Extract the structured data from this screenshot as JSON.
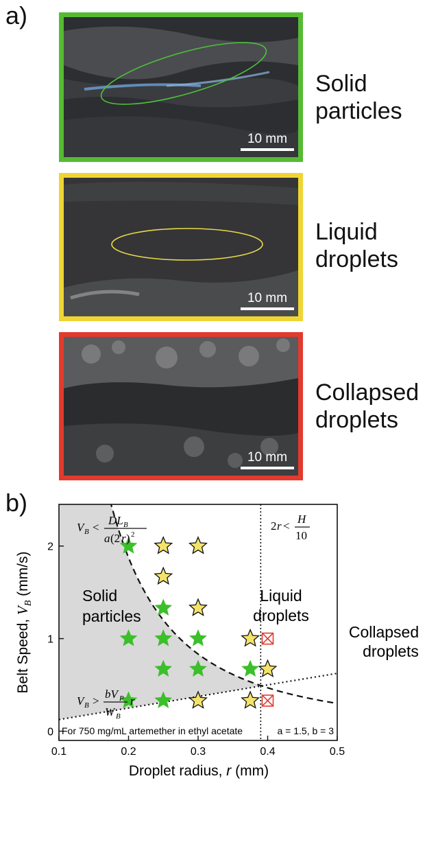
{
  "panel_a": {
    "label": "a)",
    "images": [
      {
        "caption_line1": "Solid",
        "caption_line2": "particles",
        "scale_label": "10 mm",
        "border_color": "#55bb33"
      },
      {
        "caption_line1": "Liquid",
        "caption_line2": "droplets",
        "scale_label": "10 mm",
        "border_color": "#eed533"
      },
      {
        "caption_line1": "Collapsed",
        "caption_line2": "droplets",
        "scale_label": "10 mm",
        "border_color": "#e23a2e"
      }
    ]
  },
  "panel_b": {
    "label": "b)",
    "chart_data": {
      "type": "scatter",
      "xlabel": "Droplet radius, r (mm)",
      "ylabel": "Belt Speed, V_B (mm/s)",
      "xlim": [
        0.1,
        0.5
      ],
      "ylim": [
        -0.1,
        2.45
      ],
      "x_ticks": [
        "0.1",
        "0.2",
        "0.3",
        "0.4",
        "0.5"
      ],
      "y_ticks": [
        "0",
        "1",
        "2"
      ],
      "regions": [
        {
          "text_line1": "Solid",
          "text_line2": "particles"
        },
        {
          "text_line1": "Liquid",
          "text_line2": "droplets"
        },
        {
          "text_line1": "Collapsed",
          "text_line2": "droplets"
        }
      ],
      "equations": {
        "upper": "V_B < DL_B / a(2r)^2",
        "lower": "V_B > (bV_P / W_B) r",
        "vertical": "2r < H/10"
      },
      "annotation_left": "For 750 mg/mL artemether in ethyl acetate",
      "annotation_right": "a = 1.5, b = 3",
      "vertical_line_x": 0.39,
      "series": [
        {
          "marker": "filled-star",
          "color": "#3cbf2a",
          "points": [
            [
              0.2,
              2.0
            ],
            [
              0.25,
              1.33
            ],
            [
              0.2,
              1.0
            ],
            [
              0.25,
              1.0
            ],
            [
              0.3,
              1.0
            ],
            [
              0.25,
              0.67
            ],
            [
              0.3,
              0.67
            ],
            [
              0.375,
              0.67
            ],
            [
              0.2,
              0.33
            ],
            [
              0.25,
              0.33
            ]
          ]
        },
        {
          "marker": "open-star",
          "color": "#f3e36a",
          "points": [
            [
              0.25,
              2.0
            ],
            [
              0.3,
              2.0
            ],
            [
              0.25,
              1.67
            ],
            [
              0.3,
              1.33
            ],
            [
              0.375,
              1.0
            ],
            [
              0.4,
              0.67
            ],
            [
              0.3,
              0.33
            ],
            [
              0.375,
              0.33
            ]
          ]
        },
        {
          "marker": "boxed-x",
          "color": "#e23a2e",
          "points": [
            [
              0.4,
              1.0
            ],
            [
              0.4,
              0.33
            ]
          ]
        }
      ]
    }
  }
}
